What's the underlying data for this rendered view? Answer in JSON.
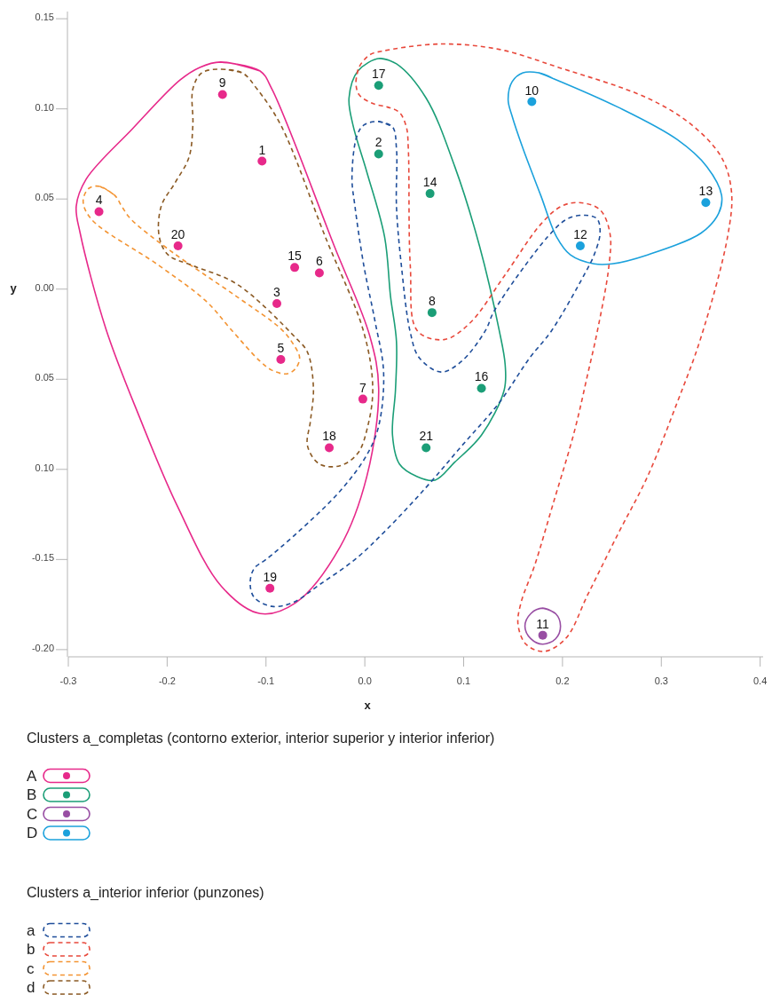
{
  "chart_data": {
    "type": "scatter",
    "xlabel": "x",
    "ylabel": "y",
    "legend": "bottom",
    "marker": "circle",
    "legend_title": "Clusters a_completas (contorno exterior, interior superior y interior inferior)",
    "annotations": [
      "Clusters a_interior inferior (punzones)",
      {
        "text": "1",
        "x": -0.104,
        "y": 0.071
      },
      {
        "text": "2",
        "x": 0.014,
        "y": 0.075
      },
      {
        "text": "3",
        "x": -0.089,
        "y": -0.008
      },
      {
        "text": "4",
        "x": -0.269,
        "y": 0.043
      },
      {
        "text": "5",
        "x": -0.085,
        "y": -0.039
      },
      {
        "text": "6",
        "x": -0.046,
        "y": 0.009
      },
      {
        "text": "7",
        "x": -0.002,
        "y": -0.061
      },
      {
        "text": "8",
        "x": 0.068,
        "y": -0.013
      },
      {
        "text": "9",
        "x": -0.144,
        "y": 0.108
      },
      {
        "text": "10",
        "x": 0.169,
        "y": 0.104
      },
      {
        "text": "11",
        "x": 0.18,
        "y": -0.192
      },
      {
        "text": "12",
        "x": 0.218,
        "y": 0.024
      },
      {
        "text": "13",
        "x": 0.345,
        "y": 0.048
      },
      {
        "text": "14",
        "x": 0.066,
        "y": 0.053
      },
      {
        "text": "15",
        "x": -0.071,
        "y": 0.012
      },
      {
        "text": "16",
        "x": 0.118,
        "y": -0.055
      },
      {
        "text": "17",
        "x": 0.014,
        "y": 0.113
      },
      {
        "text": "18",
        "x": -0.036,
        "y": -0.088
      },
      {
        "text": "19",
        "x": -0.096,
        "y": -0.166
      },
      {
        "text": "20",
        "x": -0.189,
        "y": 0.024
      },
      {
        "text": "21",
        "x": 0.062,
        "y": -0.088
      }
    ],
    "xlim": [
      -0.3,
      0.403
    ],
    "ylim": [
      -0.204,
      0.154
    ],
    "xticks": [
      -0.3,
      -0.2,
      -0.1,
      {
        "value": 0,
        "label": "0.0"
      },
      0.1,
      0.2,
      0.3,
      0.4
    ],
    "yticks": [
      0.15,
      {
        "value": 0.1,
        "label": "0.10"
      },
      0.05,
      {
        "value": 0,
        "label": "0.00"
      },
      {
        "value": -0.05,
        "label": "0.05"
      },
      {
        "value": -0.1,
        "label": "0.10"
      },
      -0.15,
      {
        "value": -0.2,
        "label": "-0.20"
      }
    ],
    "series": [
      {
        "name": "A",
        "color": "#e7298a",
        "x": [
          -0.104,
          -0.089,
          -0.269,
          -0.085,
          -0.046,
          -0.002,
          -0.144,
          -0.071,
          -0.036,
          -0.096,
          -0.189
        ],
        "values": [
          0.071,
          -0.008,
          0.043,
          -0.039,
          0.009,
          -0.061,
          0.108,
          0.012,
          -0.088,
          -0.166,
          0.024
        ]
      },
      {
        "name": "B",
        "color": "#1b9e77",
        "x": [
          0.014,
          0.068,
          0.066,
          0.118,
          0.014,
          0.062
        ],
        "values": [
          0.075,
          -0.013,
          0.053,
          -0.055,
          0.113,
          -0.088
        ]
      },
      {
        "name": "C",
        "color": "#984ea3",
        "x": [
          0.18
        ],
        "values": [
          -0.192
        ]
      },
      {
        "name": "D",
        "color": "#1ba1dc",
        "x": [
          0.169,
          0.218,
          0.345
        ],
        "values": [
          0.104,
          0.024,
          0.048
        ]
      },
      {
        "type": "line",
        "marker": "none",
        "line_style": "solid",
        "color": "#e7298a",
        "x": [
          -0.146,
          -0.106,
          -0.094,
          -0.031,
          0.005,
          0.014,
          0.002,
          -0.025,
          -0.07,
          -0.106,
          -0.145,
          -0.19,
          -0.228,
          -0.262,
          -0.288,
          -0.292,
          -0.282,
          -0.235,
          -0.187,
          -0.167,
          -0.146,
          -0.106
        ],
        "values": [
          0.126,
          0.121,
          0.111,
          0.024,
          -0.026,
          -0.055,
          -0.104,
          -0.143,
          -0.174,
          -0.18,
          -0.165,
          -0.12,
          -0.071,
          -0.022,
          0.031,
          0.046,
          0.061,
          0.089,
          0.116,
          0.123,
          0.126,
          0.121
        ]
      },
      {
        "type": "line",
        "marker": "none",
        "line_style": "solid",
        "color": "#1b9e77",
        "x": [
          0.015,
          0.032,
          0.062,
          0.091,
          0.116,
          0.136,
          0.142,
          0.141,
          0.118,
          0.091,
          0.071,
          0.053,
          0.035,
          0.028,
          0.031,
          0.032,
          0.026,
          0.02,
          0.002,
          -0.012,
          -0.016,
          -0.007,
          0.015,
          0.032
        ],
        "values": [
          0.128,
          0.125,
          0.106,
          0.068,
          0.024,
          -0.023,
          -0.042,
          -0.056,
          -0.081,
          -0.096,
          -0.106,
          -0.104,
          -0.097,
          -0.081,
          -0.056,
          -0.029,
          -0.004,
          0.029,
          0.065,
          0.091,
          0.106,
          0.121,
          0.128,
          0.125
        ]
      },
      {
        "type": "line",
        "marker": "none",
        "line_style": "solid",
        "color": "#984ea3",
        "x": [
          0.18,
          0.193,
          0.198,
          0.193,
          0.18,
          0.168,
          0.162,
          0.168,
          0.18,
          0.193
        ],
        "values": [
          -0.177,
          -0.18,
          -0.187,
          -0.194,
          -0.197,
          -0.194,
          -0.187,
          -0.18,
          -0.177,
          -0.18
        ]
      },
      {
        "type": "line",
        "marker": "none",
        "line_style": "solid",
        "color": "#1ba1dc",
        "x": [
          0.176,
          0.19,
          0.256,
          0.316,
          0.346,
          0.361,
          0.358,
          0.34,
          0.286,
          0.25,
          0.232,
          0.208,
          0.194,
          0.178,
          0.16,
          0.149,
          0.145,
          0.149,
          0.16,
          0.176,
          0.19
        ],
        "values": [
          0.12,
          0.117,
          0.101,
          0.083,
          0.068,
          0.052,
          0.042,
          0.031,
          0.019,
          0.014,
          0.014,
          0.019,
          0.029,
          0.052,
          0.078,
          0.096,
          0.105,
          0.115,
          0.12,
          0.12,
          0.117
        ]
      },
      {
        "name": "a",
        "type": "line",
        "marker": "none",
        "line_style": "dashed",
        "color": "#1f4e9a",
        "x": [
          0.014,
          0.028,
          0.032,
          0.032,
          0.037,
          0.046,
          0.055,
          0.077,
          0.098,
          0.122,
          0.131,
          0.185,
          0.205,
          0.223,
          0.235,
          0.238,
          0.232,
          0.223,
          0.189,
          0.167,
          0.136,
          0.098,
          0.062,
          0.021,
          -0.01,
          -0.046,
          -0.073,
          -0.094,
          -0.112,
          -0.116,
          -0.112,
          -0.1,
          -0.07,
          -0.025,
          0.002,
          0.014,
          0.019,
          0.01,
          -0.001,
          -0.01,
          -0.013,
          -0.008,
          -0.001,
          0.014,
          0.028
        ],
        "values": [
          0.093,
          0.09,
          0.078,
          0.046,
          0.013,
          -0.024,
          -0.038,
          -0.046,
          -0.04,
          -0.023,
          -0.012,
          0.029,
          0.039,
          0.041,
          0.039,
          0.031,
          0.019,
          0.009,
          -0.023,
          -0.038,
          -0.063,
          -0.087,
          -0.11,
          -0.134,
          -0.15,
          -0.164,
          -0.174,
          -0.176,
          -0.171,
          -0.163,
          -0.155,
          -0.15,
          -0.136,
          -0.112,
          -0.092,
          -0.076,
          -0.046,
          -0.017,
          0.013,
          0.046,
          0.062,
          0.085,
          0.091,
          0.093,
          0.09
        ]
      },
      {
        "name": "b",
        "type": "line",
        "marker": "none",
        "line_style": "dashed",
        "color": "#e8483b",
        "x": [
          -0.009,
          -0.006,
          0.005,
          0.017,
          0.077,
          0.136,
          0.196,
          0.286,
          0.331,
          0.361,
          0.371,
          0.367,
          0.34,
          0.316,
          0.286,
          0.256,
          0.226,
          0.203,
          0.181,
          0.163,
          0.155,
          0.158,
          0.172,
          0.19,
          0.212,
          0.226,
          0.235,
          0.247,
          0.248,
          0.238,
          0.217,
          0.199,
          0.178,
          0.142,
          0.106,
          0.08,
          0.053,
          0.046,
          0.044,
          0.042,
          0.035,
          0.023,
          0.008,
          -0.006,
          -0.009,
          -0.006
        ],
        "values": [
          0.115,
          0.123,
          0.13,
          0.132,
          0.136,
          0.133,
          0.123,
          0.106,
          0.091,
          0.073,
          0.054,
          0.029,
          -0.027,
          -0.063,
          -0.104,
          -0.136,
          -0.169,
          -0.194,
          -0.201,
          -0.197,
          -0.186,
          -0.174,
          -0.153,
          -0.12,
          -0.079,
          -0.046,
          -0.024,
          0.013,
          0.031,
          0.044,
          0.048,
          0.046,
          0.036,
          0.008,
          -0.019,
          -0.028,
          -0.023,
          0.013,
          0.078,
          0.09,
          0.098,
          0.101,
          0.103,
          0.108,
          0.115,
          0.123
        ]
      },
      {
        "name": "c",
        "type": "line",
        "marker": "none",
        "line_style": "dashed",
        "color": "#f39433",
        "x": [
          -0.268,
          -0.253,
          -0.246,
          -0.237,
          -0.196,
          -0.13,
          -0.085,
          -0.073,
          -0.066,
          -0.07,
          -0.079,
          -0.094,
          -0.106,
          -0.136,
          -0.16,
          -0.208,
          -0.277,
          -0.285,
          -0.279,
          -0.268,
          -0.253
        ],
        "values": [
          0.057,
          0.052,
          0.046,
          0.039,
          0.021,
          -0.004,
          -0.022,
          -0.03,
          -0.038,
          -0.044,
          -0.047,
          -0.045,
          -0.04,
          -0.022,
          -0.007,
          0.013,
          0.039,
          0.049,
          0.056,
          0.057,
          0.052
        ]
      },
      {
        "name": "d",
        "type": "line",
        "marker": "none",
        "line_style": "dashed",
        "color": "#8b5a24",
        "x": [
          -0.145,
          -0.124,
          -0.109,
          -0.085,
          -0.04,
          -0.001,
          0.008,
          0.003,
          -0.007,
          -0.025,
          -0.046,
          -0.058,
          -0.055,
          -0.052,
          -0.058,
          -0.07,
          -0.13,
          -0.174,
          -0.199,
          -0.208,
          -0.206,
          -0.192,
          -0.178,
          -0.174,
          -0.174,
          -0.165,
          -0.145,
          -0.124
        ],
        "values": [
          0.122,
          0.12,
          0.111,
          0.091,
          0.029,
          -0.024,
          -0.055,
          -0.076,
          -0.091,
          -0.098,
          -0.097,
          -0.087,
          -0.073,
          -0.055,
          -0.035,
          -0.027,
          0.003,
          0.013,
          0.019,
          0.029,
          0.046,
          0.059,
          0.073,
          0.091,
          0.111,
          0.12,
          0.122,
          0.12
        ]
      }
    ]
  }
}
